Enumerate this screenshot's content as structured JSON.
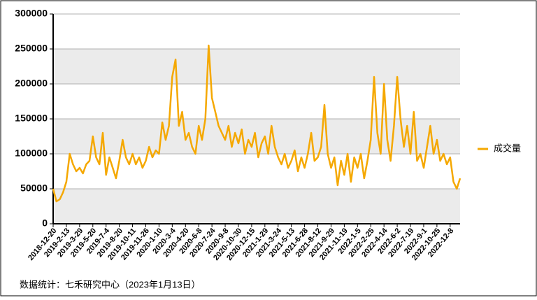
{
  "chart_data": {
    "type": "line",
    "source": "数据统计：七禾研究中心（2023年1月13日）",
    "categories": [
      "2018-12-20",
      null,
      null,
      null,
      "2019-2-13",
      null,
      null,
      null,
      "2019-3-29",
      null,
      null,
      null,
      "2019-5-20",
      null,
      null,
      null,
      "2019-7-4",
      null,
      null,
      null,
      "2019-8-20",
      null,
      null,
      null,
      "2019-10-11",
      null,
      null,
      null,
      "2019-11-26",
      null,
      null,
      null,
      "2020-1-10",
      null,
      null,
      null,
      "2020-3-4",
      null,
      null,
      null,
      "2020-4-20",
      null,
      null,
      null,
      "2020-6-8",
      null,
      null,
      null,
      "2020-7-24",
      null,
      null,
      null,
      "2020-9-8",
      null,
      null,
      null,
      "2020-10-30",
      null,
      null,
      null,
      "2020-12-15",
      null,
      null,
      null,
      "2021-1-29",
      null,
      null,
      null,
      "2021-3-24",
      null,
      null,
      null,
      "2021-5-13",
      null,
      null,
      null,
      "2021-6-28",
      null,
      null,
      null,
      "2021-8-12",
      null,
      null,
      null,
      "2021-9-29",
      null,
      null,
      null,
      "2021-11-19",
      null,
      null,
      null,
      "2022-1-5",
      null,
      null,
      null,
      "2022-2-25",
      null,
      null,
      null,
      "2022-4-14",
      null,
      null,
      null,
      "2022-6-2",
      null,
      null,
      null,
      "2022-7-19",
      null,
      null,
      null,
      "2022-9-1",
      null,
      null,
      null,
      "2022-10-25",
      null,
      null,
      null,
      "2022-12-8",
      null,
      null,
      null
    ],
    "series": [
      {
        "name": "成交量",
        "color": "#f5a800",
        "values": [
          50000,
          32000,
          35000,
          45000,
          60000,
          100000,
          85000,
          75000,
          80000,
          72000,
          85000,
          90000,
          125000,
          95000,
          85000,
          130000,
          70000,
          95000,
          80000,
          65000,
          90000,
          120000,
          95000,
          85000,
          100000,
          85000,
          95000,
          80000,
          90000,
          110000,
          95000,
          105000,
          100000,
          145000,
          120000,
          140000,
          210000,
          235000,
          140000,
          160000,
          120000,
          130000,
          110000,
          100000,
          140000,
          120000,
          150000,
          255000,
          180000,
          160000,
          140000,
          130000,
          120000,
          140000,
          110000,
          130000,
          115000,
          135000,
          100000,
          120000,
          110000,
          130000,
          95000,
          115000,
          125000,
          100000,
          140000,
          110000,
          95000,
          85000,
          100000,
          80000,
          90000,
          105000,
          75000,
          95000,
          80000,
          100000,
          130000,
          90000,
          95000,
          110000,
          170000,
          100000,
          80000,
          95000,
          55000,
          90000,
          70000,
          100000,
          60000,
          95000,
          80000,
          100000,
          65000,
          90000,
          120000,
          210000,
          130000,
          100000,
          200000,
          120000,
          90000,
          140000,
          210000,
          150000,
          110000,
          140000,
          100000,
          160000,
          90000,
          100000,
          80000,
          110000,
          140000,
          100000,
          120000,
          90000,
          100000,
          85000,
          95000,
          60000,
          50000,
          65000
        ]
      }
    ],
    "ylim": [
      0,
      300000
    ],
    "yticks": [
      0,
      50000,
      100000,
      150000,
      200000,
      250000,
      300000
    ],
    "grid": true,
    "legend": "right"
  }
}
